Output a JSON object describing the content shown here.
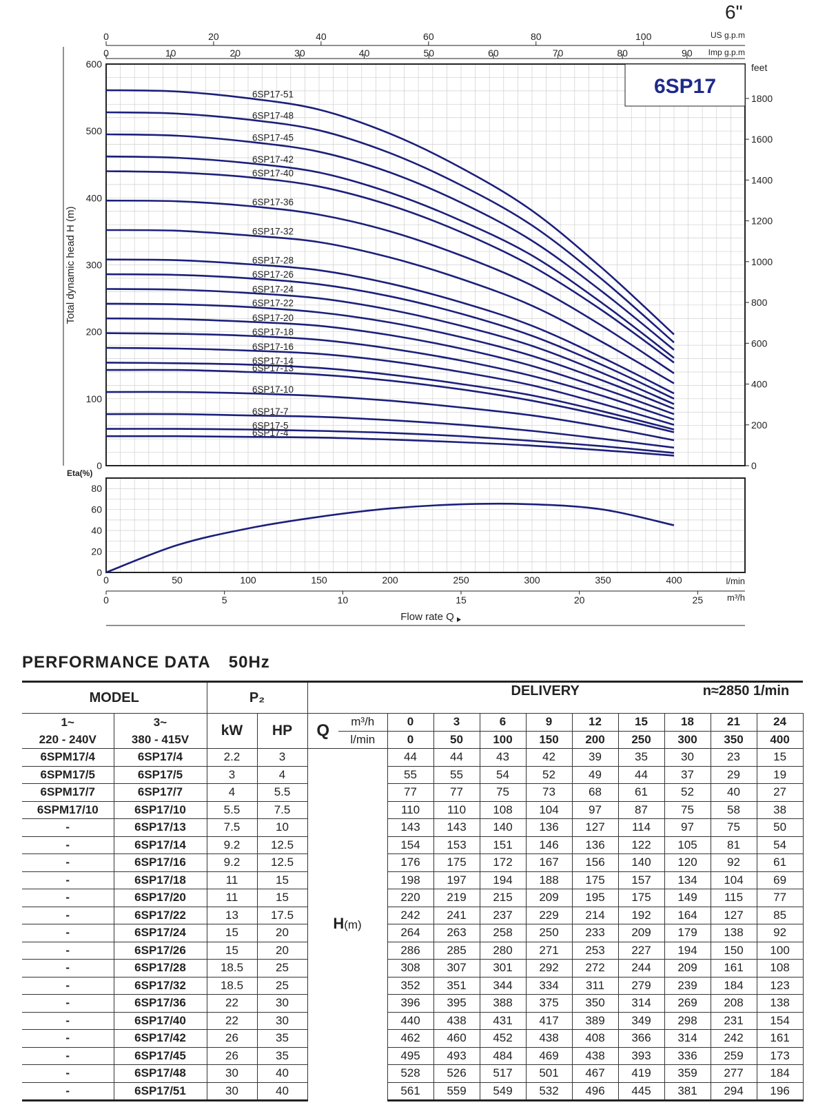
{
  "size_label": "6\"",
  "colors": {
    "curve": "#1c1f7a",
    "brand": "#1e2a8a",
    "grid": "#cfcfcf",
    "axis": "#222222"
  },
  "chart_data": [
    {
      "type": "line",
      "title": "6SP17",
      "ylabel": "Total dynamic head H (m)",
      "ylabel_right": "feet",
      "ylim": [
        0,
        600
      ],
      "y_ticks": [
        0,
        100,
        200,
        300,
        400,
        500,
        600
      ],
      "y_right_ticks": [
        0,
        200,
        400,
        600,
        800,
        1000,
        1200,
        1400,
        1600,
        1800
      ],
      "xlim": [
        0,
        450
      ],
      "x": [
        0,
        50,
        100,
        150,
        200,
        250,
        300,
        350,
        400
      ],
      "top_axis_us": {
        "unit": "US g.p.m",
        "ticks": [
          "0",
          "20",
          "40",
          "60",
          "80",
          "100"
        ],
        "values": [
          0,
          20,
          40,
          60,
          80,
          100
        ]
      },
      "top_axis_imp": {
        "unit": "Imp g.p.m",
        "ticks": [
          "0",
          "10",
          "20",
          "30",
          "40",
          "50",
          "60",
          "70",
          "80",
          "90"
        ],
        "values": [
          0,
          10,
          20,
          30,
          40,
          50,
          60,
          70,
          80,
          90
        ]
      },
      "series": [
        {
          "name": "6SP17-51",
          "values": [
            561,
            559,
            549,
            532,
            496,
            445,
            381,
            294,
            196
          ]
        },
        {
          "name": "6SP17-48",
          "values": [
            528,
            526,
            517,
            501,
            467,
            419,
            359,
            277,
            184
          ]
        },
        {
          "name": "6SP17-45",
          "values": [
            495,
            493,
            484,
            469,
            438,
            393,
            336,
            259,
            173
          ]
        },
        {
          "name": "6SP17-42",
          "values": [
            462,
            460,
            452,
            438,
            408,
            366,
            314,
            242,
            161
          ]
        },
        {
          "name": "6SP17-40",
          "values": [
            440,
            438,
            431,
            417,
            389,
            349,
            298,
            231,
            154
          ]
        },
        {
          "name": "6SP17-36",
          "values": [
            396,
            395,
            388,
            375,
            350,
            314,
            269,
            208,
            138
          ]
        },
        {
          "name": "6SP17-32",
          "values": [
            352,
            351,
            344,
            334,
            311,
            279,
            239,
            184,
            123
          ]
        },
        {
          "name": "6SP17-28",
          "values": [
            308,
            307,
            301,
            292,
            272,
            244,
            209,
            161,
            108
          ]
        },
        {
          "name": "6SP17-26",
          "values": [
            286,
            285,
            280,
            271,
            253,
            227,
            194,
            150,
            100
          ]
        },
        {
          "name": "6SP17-24",
          "values": [
            264,
            263,
            258,
            250,
            233,
            209,
            179,
            138,
            92
          ]
        },
        {
          "name": "6SP17-22",
          "values": [
            242,
            241,
            237,
            229,
            214,
            192,
            164,
            127,
            85
          ]
        },
        {
          "name": "6SP17-20",
          "values": [
            220,
            219,
            215,
            209,
            195,
            175,
            149,
            115,
            77
          ]
        },
        {
          "name": "6SP17-18",
          "values": [
            198,
            197,
            194,
            188,
            175,
            157,
            134,
            104,
            69
          ]
        },
        {
          "name": "6SP17-16",
          "values": [
            176,
            175,
            172,
            167,
            156,
            140,
            120,
            92,
            61
          ]
        },
        {
          "name": "6SP17-14",
          "values": [
            154,
            153,
            151,
            146,
            136,
            122,
            105,
            81,
            54
          ]
        },
        {
          "name": "6SP17-13",
          "values": [
            143,
            143,
            140,
            136,
            127,
            114,
            97,
            75,
            50
          ]
        },
        {
          "name": "6SP17-10",
          "values": [
            110,
            110,
            108,
            104,
            97,
            87,
            75,
            58,
            38
          ]
        },
        {
          "name": "6SP17-7",
          "values": [
            77,
            77,
            75,
            73,
            68,
            61,
            52,
            40,
            27
          ]
        },
        {
          "name": "6SP17-5",
          "values": [
            55,
            55,
            54,
            52,
            49,
            44,
            37,
            29,
            19
          ]
        },
        {
          "name": "6SP17-4",
          "values": [
            44,
            44,
            43,
            42,
            39,
            35,
            30,
            23,
            15
          ]
        }
      ]
    },
    {
      "type": "line",
      "ylabel": "Eta(%)",
      "ylim": [
        0,
        90
      ],
      "y_ticks": [
        0,
        20,
        40,
        60,
        80
      ],
      "xlim": [
        0,
        450
      ],
      "x": [
        0,
        50,
        100,
        150,
        200,
        250,
        300,
        350,
        400
      ],
      "series": [
        {
          "name": "Eta",
          "values": [
            0,
            26,
            42,
            53,
            61,
            65,
            65,
            60,
            45
          ]
        }
      ],
      "xlabel": "Flow rate Q",
      "x_axis_lmin": {
        "unit": "l/min",
        "ticks": [
          "0",
          "50",
          "100",
          "150",
          "200",
          "250",
          "300",
          "350",
          "400"
        ],
        "values": [
          0,
          50,
          100,
          150,
          200,
          250,
          300,
          350,
          400
        ]
      },
      "x_axis_m3h": {
        "unit": "m³/h",
        "ticks": [
          "0",
          "5",
          "10",
          "15",
          "20",
          "25"
        ],
        "values": [
          0,
          5,
          10,
          15,
          20,
          25
        ]
      }
    }
  ],
  "performance": {
    "title": "PERFORMANCE DATA",
    "freq": "50Hz",
    "headers": {
      "model": "MODEL",
      "p2": "P₂",
      "delivery": "DELIVERY",
      "speed": "n≈2850 1/min",
      "single_phase_a": "1~",
      "single_phase_b": "220 - 240V",
      "three_phase_a": "3~",
      "three_phase_b": "380 - 415V",
      "kw": "kW",
      "hp": "HP",
      "q": "Q",
      "m3h": "m³/h",
      "lmin": "l/min",
      "h": "H",
      "h_unit": "(m)"
    },
    "flow_m3h": [
      "0",
      "3",
      "6",
      "9",
      "12",
      "15",
      "18",
      "21",
      "24"
    ],
    "flow_lmin": [
      "0",
      "50",
      "100",
      "150",
      "200",
      "250",
      "300",
      "350",
      "400"
    ],
    "rows": [
      {
        "single": "6SPM17/4",
        "three": "6SP17/4",
        "kw": "2.2",
        "hp": "3",
        "h": [
          "44",
          "44",
          "43",
          "42",
          "39",
          "35",
          "30",
          "23",
          "15"
        ]
      },
      {
        "single": "6SPM17/5",
        "three": "6SP17/5",
        "kw": "3",
        "hp": "4",
        "h": [
          "55",
          "55",
          "54",
          "52",
          "49",
          "44",
          "37",
          "29",
          "19"
        ]
      },
      {
        "single": "6SPM17/7",
        "three": "6SP17/7",
        "kw": "4",
        "hp": "5.5",
        "h": [
          "77",
          "77",
          "75",
          "73",
          "68",
          "61",
          "52",
          "40",
          "27"
        ]
      },
      {
        "single": "6SPM17/10",
        "three": "6SP17/10",
        "kw": "5.5",
        "hp": "7.5",
        "h": [
          "110",
          "110",
          "108",
          "104",
          "97",
          "87",
          "75",
          "58",
          "38"
        ]
      },
      {
        "single": "-",
        "three": "6SP17/13",
        "kw": "7.5",
        "hp": "10",
        "h": [
          "143",
          "143",
          "140",
          "136",
          "127",
          "114",
          "97",
          "75",
          "50"
        ]
      },
      {
        "single": "-",
        "three": "6SP17/14",
        "kw": "9.2",
        "hp": "12.5",
        "h": [
          "154",
          "153",
          "151",
          "146",
          "136",
          "122",
          "105",
          "81",
          "54"
        ]
      },
      {
        "single": "-",
        "three": "6SP17/16",
        "kw": "9.2",
        "hp": "12.5",
        "h": [
          "176",
          "175",
          "172",
          "167",
          "156",
          "140",
          "120",
          "92",
          "61"
        ]
      },
      {
        "single": "-",
        "three": "6SP17/18",
        "kw": "11",
        "hp": "15",
        "h": [
          "198",
          "197",
          "194",
          "188",
          "175",
          "157",
          "134",
          "104",
          "69"
        ]
      },
      {
        "single": "-",
        "three": "6SP17/20",
        "kw": "11",
        "hp": "15",
        "h": [
          "220",
          "219",
          "215",
          "209",
          "195",
          "175",
          "149",
          "115",
          "77"
        ]
      },
      {
        "single": "-",
        "three": "6SP17/22",
        "kw": "13",
        "hp": "17.5",
        "h": [
          "242",
          "241",
          "237",
          "229",
          "214",
          "192",
          "164",
          "127",
          "85"
        ]
      },
      {
        "single": "-",
        "three": "6SP17/24",
        "kw": "15",
        "hp": "20",
        "h": [
          "264",
          "263",
          "258",
          "250",
          "233",
          "209",
          "179",
          "138",
          "92"
        ]
      },
      {
        "single": "-",
        "three": "6SP17/26",
        "kw": "15",
        "hp": "20",
        "h": [
          "286",
          "285",
          "280",
          "271",
          "253",
          "227",
          "194",
          "150",
          "100"
        ]
      },
      {
        "single": "-",
        "three": "6SP17/28",
        "kw": "18.5",
        "hp": "25",
        "h": [
          "308",
          "307",
          "301",
          "292",
          "272",
          "244",
          "209",
          "161",
          "108"
        ]
      },
      {
        "single": "-",
        "three": "6SP17/32",
        "kw": "18.5",
        "hp": "25",
        "h": [
          "352",
          "351",
          "344",
          "334",
          "311",
          "279",
          "239",
          "184",
          "123"
        ]
      },
      {
        "single": "-",
        "three": "6SP17/36",
        "kw": "22",
        "hp": "30",
        "h": [
          "396",
          "395",
          "388",
          "375",
          "350",
          "314",
          "269",
          "208",
          "138"
        ]
      },
      {
        "single": "-",
        "three": "6SP17/40",
        "kw": "22",
        "hp": "30",
        "h": [
          "440",
          "438",
          "431",
          "417",
          "389",
          "349",
          "298",
          "231",
          "154"
        ]
      },
      {
        "single": "-",
        "three": "6SP17/42",
        "kw": "26",
        "hp": "35",
        "h": [
          "462",
          "460",
          "452",
          "438",
          "408",
          "366",
          "314",
          "242",
          "161"
        ]
      },
      {
        "single": "-",
        "three": "6SP17/45",
        "kw": "26",
        "hp": "35",
        "h": [
          "495",
          "493",
          "484",
          "469",
          "438",
          "393",
          "336",
          "259",
          "173"
        ]
      },
      {
        "single": "-",
        "three": "6SP17/48",
        "kw": "30",
        "hp": "40",
        "h": [
          "528",
          "526",
          "517",
          "501",
          "467",
          "419",
          "359",
          "277",
          "184"
        ]
      },
      {
        "single": "-",
        "three": "6SP17/51",
        "kw": "30",
        "hp": "40",
        "h": [
          "561",
          "559",
          "549",
          "532",
          "496",
          "445",
          "381",
          "294",
          "196"
        ]
      }
    ]
  }
}
